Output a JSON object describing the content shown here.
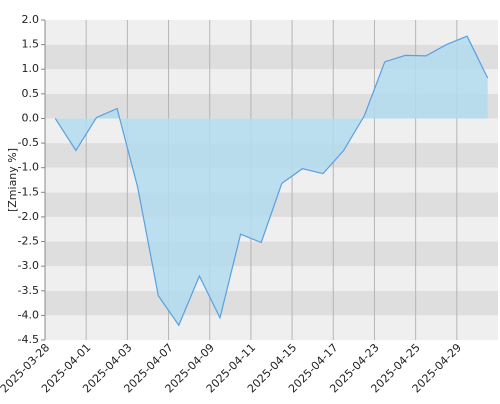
{
  "chart_data": {
    "type": "area",
    "y_label": "[Zmiany %]",
    "categories": [
      "2025-03-28",
      null,
      "2025-04-01",
      null,
      "2025-04-03",
      null,
      "2025-04-07",
      null,
      "2025-04-09",
      null,
      "2025-04-11",
      null,
      "2025-04-15",
      null,
      "2025-04-17",
      null,
      "2025-04-23",
      null,
      "2025-04-25",
      null,
      "2025-04-29",
      null
    ],
    "values": [
      0,
      -0.65,
      0.02,
      0.2,
      -1.4,
      -3.6,
      -4.2,
      -3.2,
      -4.05,
      -2.35,
      -2.52,
      -1.32,
      -1.02,
      -1.12,
      -0.65,
      0.05,
      1.15,
      1.28,
      1.27,
      1.5,
      1.67,
      0.82
    ],
    "color": "#5aa0e0",
    "fill_color": "#b3dcee",
    "ylim": [
      -4.5,
      2.0
    ],
    "yticks": [
      {
        "value": -4.5,
        "label": "-4.5"
      },
      {
        "value": -4,
        "label": "-4.0"
      },
      {
        "value": -3.5,
        "label": "-3.5"
      },
      {
        "value": -3,
        "label": "-3.0"
      },
      {
        "value": -2.5,
        "label": "-2.5"
      },
      {
        "value": -2,
        "label": "-2.0"
      },
      {
        "value": -1.5,
        "label": "-1.5"
      },
      {
        "value": -1,
        "label": "-1.0"
      },
      {
        "value": -0.5,
        "label": "-0.5"
      },
      {
        "value": 0,
        "label": "0.0"
      },
      {
        "value": 0.5,
        "label": "0.5"
      },
      {
        "value": 1,
        "label": "1.0"
      },
      {
        "value": 1.5,
        "label": "1.5"
      },
      {
        "value": 2,
        "label": "2.0"
      }
    ],
    "grid": true
  }
}
